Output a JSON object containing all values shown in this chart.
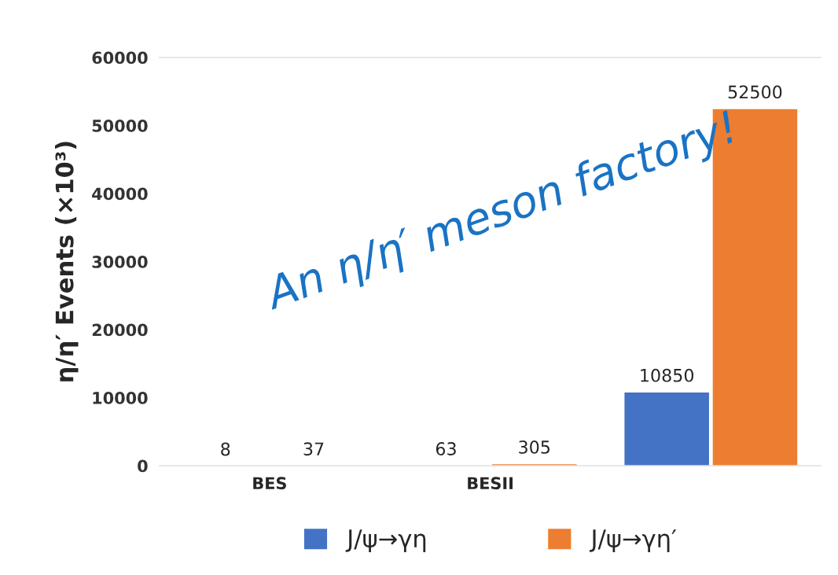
{
  "chart_data": {
    "type": "bar",
    "ylabel": "η/η′ Events (×10³)",
    "categories": [
      "BES",
      "BESII",
      null
    ],
    "series": [
      {
        "name": "J/ψ→γη",
        "color": "#4472c4",
        "values": [
          8,
          63,
          10850
        ]
      },
      {
        "name": "J/ψ→γη′",
        "color": "#ed7d31",
        "values": [
          37,
          305,
          52500
        ]
      }
    ],
    "ylim": [
      0,
      60000
    ],
    "yticks": [
      0,
      10000,
      20000,
      30000,
      40000,
      50000,
      60000
    ],
    "grid": false,
    "legend": "bottom",
    "data_labels": true,
    "annotations": [
      "An η/η′ meson factory!"
    ]
  }
}
